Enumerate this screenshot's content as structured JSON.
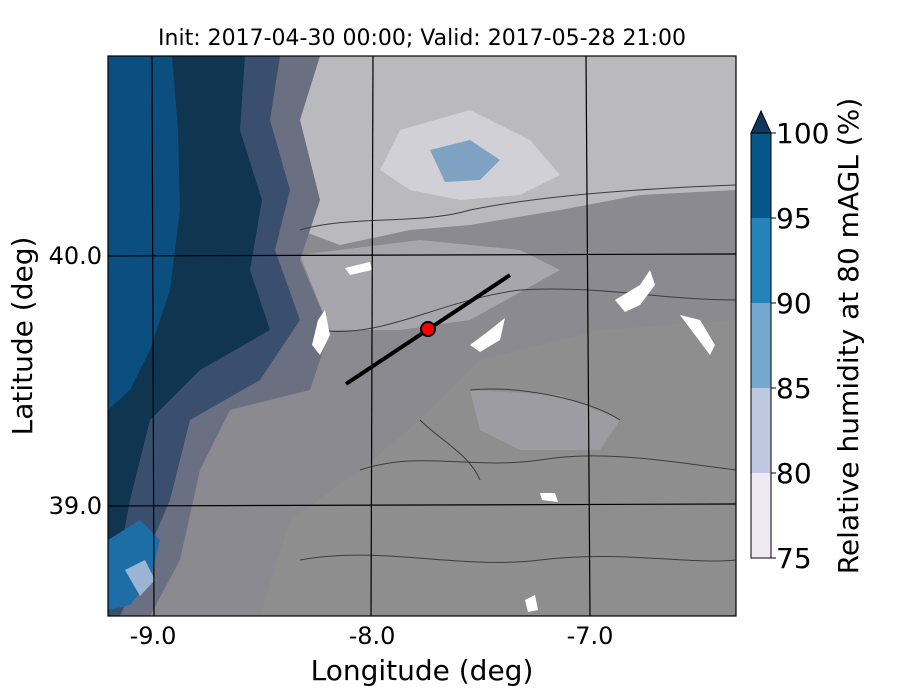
{
  "title": "Init: 2017-04-30 00:00; Valid: 2017-05-28 21:00",
  "map": {
    "xlabel": "Longitude (deg)",
    "ylabel": "Latitude (deg)",
    "xticks": [
      "-9.0",
      "-8.0",
      "-7.0"
    ],
    "yticks": [
      "40.0",
      "39.0"
    ],
    "marker_color": "#ff0000",
    "transect_color": "#000000"
  },
  "colorbar": {
    "label": "Relative humidity at 80 mAGL (%)",
    "ticks": [
      "75",
      "80",
      "85",
      "90",
      "95",
      "100"
    ],
    "colors": [
      "#efe9f3",
      "#bec8e1",
      "#74a9cf",
      "#2383ba",
      "#045788",
      "#0b3a5c"
    ]
  }
}
